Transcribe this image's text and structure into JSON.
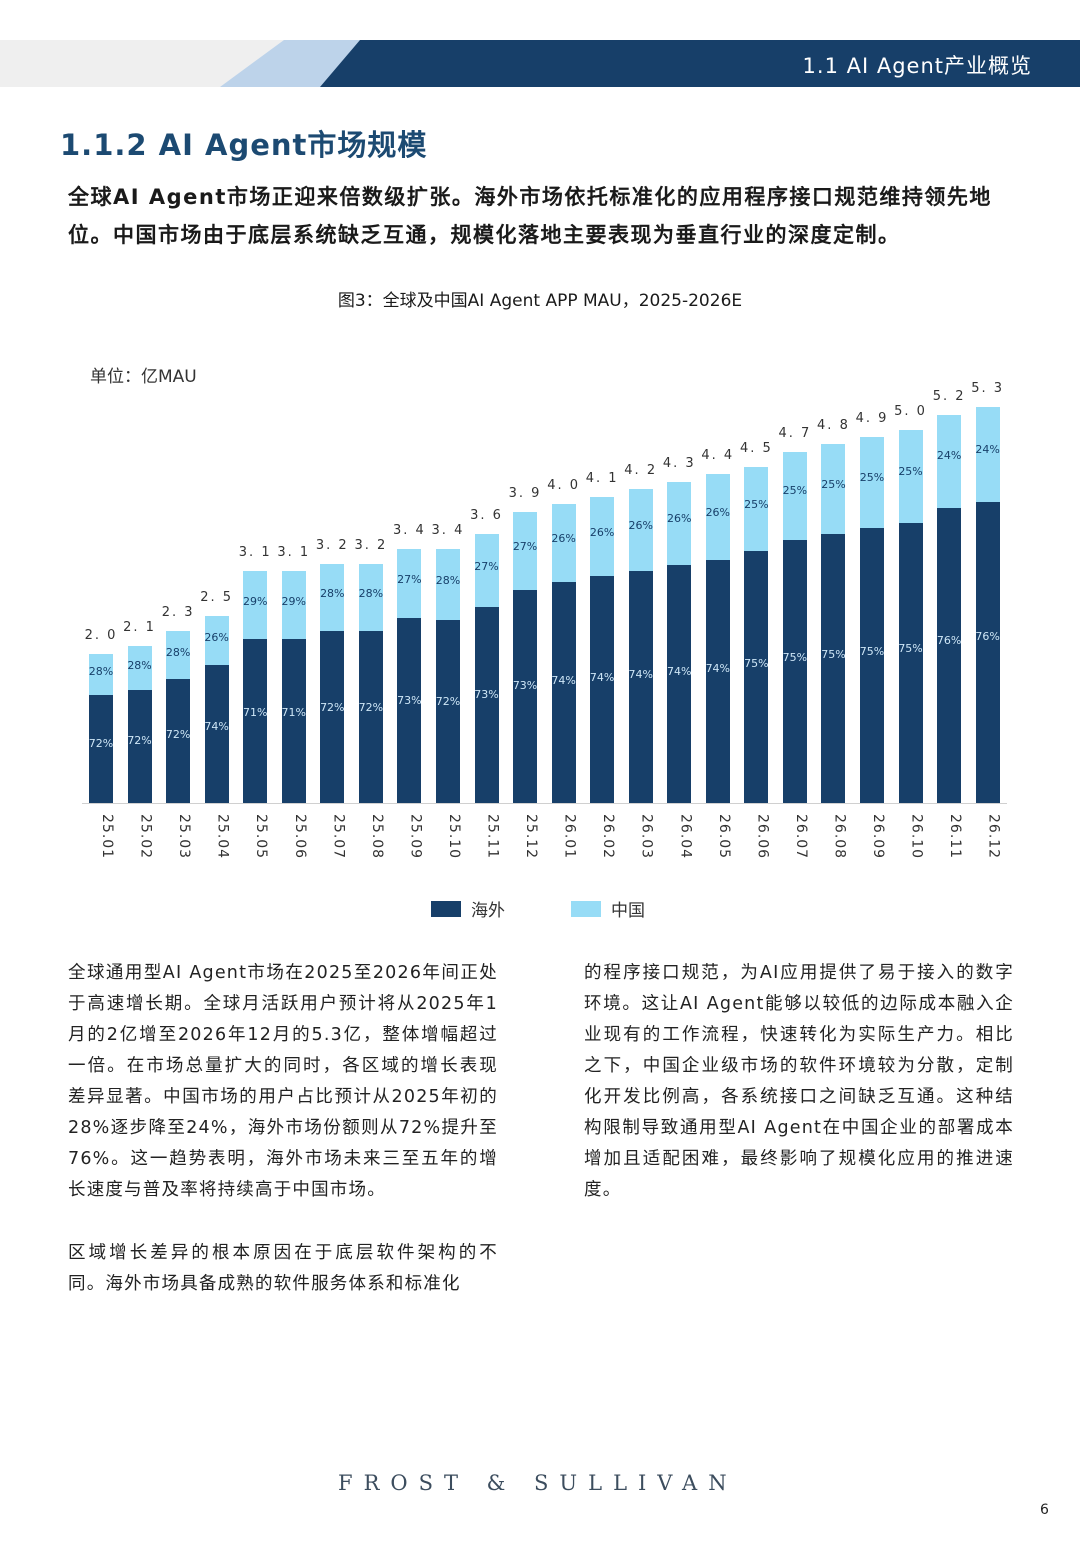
{
  "header": {
    "section_label": "1.1 AI Agent产业概览"
  },
  "section": {
    "title": "1.1.2 AI Agent市场规模",
    "lead": "全球AI Agent市场正迎来倍数级扩张。海外市场依托标准化的应用程序接口规范维持领先地位。中国市场由于底层系统缺乏互通，规模化落地主要表现为垂直行业的深度定制。"
  },
  "figure": {
    "title": "图3：全球及中国AI Agent APP MAU，2025-2026E",
    "unit": "单位：亿MAU"
  },
  "chart_data": {
    "type": "bar",
    "stacked": true,
    "title": "图3：全球及中国AI Agent APP MAU，2025-2026E",
    "ylabel": "单位：亿MAU",
    "xlabel": "",
    "ylim": [
      0,
      5.5
    ],
    "grid": false,
    "legend_position": "bottom",
    "categories": [
      "25.01",
      "25.02",
      "25.03",
      "25.04",
      "25.05",
      "25.06",
      "25.07",
      "25.08",
      "25.09",
      "25.10",
      "25.11",
      "25.12",
      "26.01",
      "26.02",
      "26.03",
      "26.04",
      "26.05",
      "26.06",
      "26.07",
      "26.08",
      "26.09",
      "26.10",
      "26.11",
      "26.12"
    ],
    "totals": [
      2.0,
      2.1,
      2.3,
      2.5,
      3.1,
      3.1,
      3.2,
      3.2,
      3.4,
      3.4,
      3.6,
      3.9,
      4.0,
      4.1,
      4.2,
      4.3,
      4.4,
      4.5,
      4.7,
      4.8,
      4.9,
      5.0,
      5.2,
      5.3
    ],
    "series": [
      {
        "name": "海外",
        "color": "#173f69",
        "share_pct": [
          72,
          72,
          72,
          74,
          71,
          71,
          72,
          72,
          73,
          72,
          73,
          73,
          74,
          74,
          74,
          74,
          74,
          75,
          75,
          75,
          75,
          75,
          76,
          76
        ]
      },
      {
        "name": "中国",
        "color": "#97dcf6",
        "share_pct": [
          28,
          28,
          28,
          26,
          29,
          29,
          28,
          28,
          27,
          28,
          27,
          27,
          26,
          26,
          26,
          26,
          26,
          25,
          25,
          25,
          25,
          25,
          24,
          24
        ]
      }
    ]
  },
  "legend": {
    "overseas": "海外",
    "china": "中国"
  },
  "body": {
    "left_p1": "全球通用型AI Agent市场在2025至2026年间正处于高速增长期。全球月活跃用户预计将从2025年1月的2亿增至2026年12月的5.3亿，整体增幅超过一倍。在市场总量扩大的同时，各区域的增长表现差异显著。中国市场的用户占比预计从2025年初的28%逐步降至24%，海外市场份额则从72%提升至76%。这一趋势表明，海外市场未来三至五年的增长速度与普及率将持续高于中国市场。",
    "left_p2": "区域增长差异的根本原因在于底层软件架构的不同。海外市场具备成熟的软件服务体系和标准化",
    "right_p1": "的程序接口规范，为AI应用提供了易于接入的数字环境。这让AI Agent能够以较低的边际成本融入企业现有的工作流程，快速转化为实际生产力。相比之下，中国企业级市场的软件环境较为分散，定制化开发比例高，各系统接口之间缺乏互通。这种结构限制导致通用型AI Agent在中国企业的部署成本增加且适配困难，最终影响了规模化应用的推进速度。"
  },
  "footer": {
    "brand": "FROST & SULLIVAN",
    "page": "6"
  }
}
